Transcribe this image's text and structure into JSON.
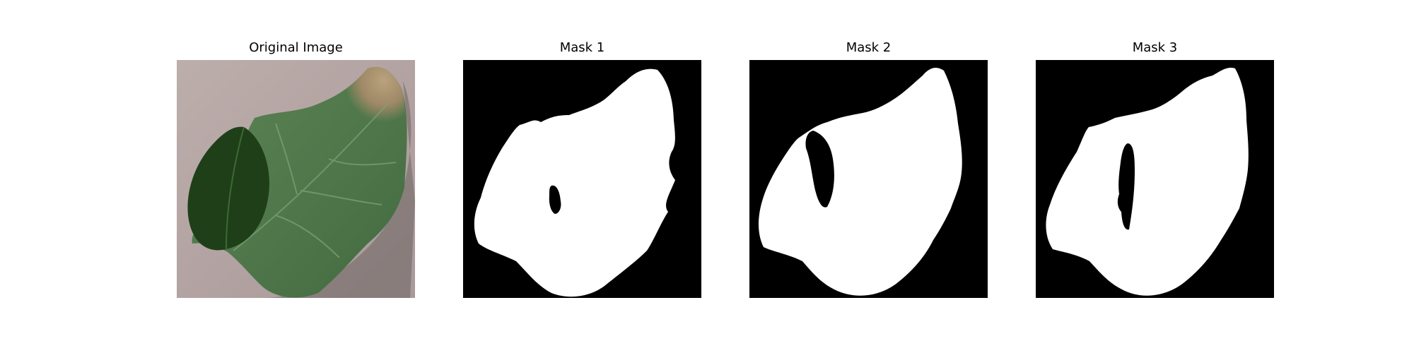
{
  "panels": [
    {
      "title": "Original Image",
      "kind": "photo"
    },
    {
      "title": "Mask 1",
      "kind": "mask"
    },
    {
      "title": "Mask 2",
      "kind": "mask"
    },
    {
      "title": "Mask 3",
      "kind": "mask"
    }
  ],
  "colors": {
    "background": "#ffffff",
    "mask_background": "#000000",
    "mask_foreground": "#ffffff",
    "photo_surface": "#b8a9a6",
    "leaf_dark": "#1f3d18",
    "leaf_main": "#4f7a4a",
    "leaf_blight": "#a8906a"
  }
}
